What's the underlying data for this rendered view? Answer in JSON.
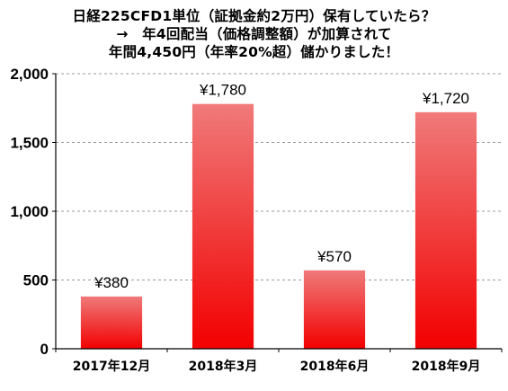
{
  "title_lines": [
    "日経225CFD1単位（証拠金約2万円）保有していたら？",
    "→　年4回配当（価格調整額）が加算されて",
    "年間4,450円（年率20%超）儲かりました！"
  ],
  "colors": {
    "bar_top": "#f07a7a",
    "bar_bottom": "#f20000",
    "axis": "#000000",
    "grid": "#9a9a9a"
  },
  "chart_data": {
    "type": "bar",
    "title": "日経225CFD1単位（証拠金約2万円）保有していたら？ → 年4回配当（価格調整額）が加算されて 年間4,450円（年率20%超）儲かりました！",
    "categories": [
      "2017年12月",
      "2018年3月",
      "2018年6月",
      "2018年9月"
    ],
    "values": [
      380,
      1780,
      570,
      1720
    ],
    "data_labels": [
      "¥380",
      "¥1,780",
      "¥570",
      "¥1,720"
    ],
    "ylim": [
      0,
      2000
    ],
    "yticks": [
      0,
      500,
      1000,
      1500,
      2000
    ],
    "ytick_labels": [
      "0",
      "500",
      "1,000",
      "1,500",
      "2,000"
    ],
    "xlabel": "",
    "ylabel": "",
    "grid": "horizontal-dashed",
    "legend": "none"
  }
}
